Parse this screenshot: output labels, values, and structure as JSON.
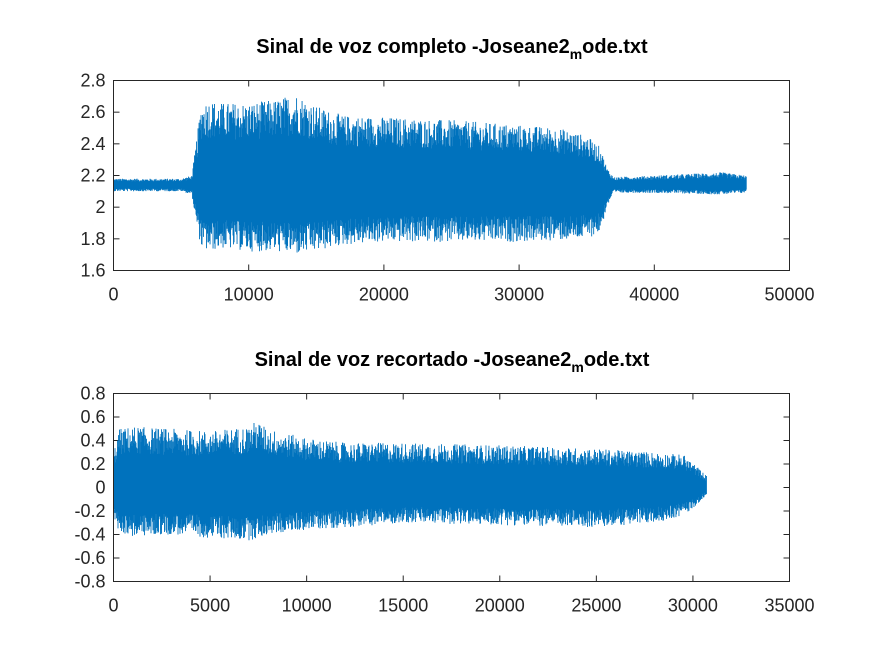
{
  "chart_data": [
    {
      "type": "line",
      "title": "Sinal de voz completo -Joseane2",
      "title_subscript": "m",
      "title_suffix": "ode.txt",
      "xlabel": "",
      "ylabel": "",
      "xlim": [
        0,
        50000
      ],
      "ylim": [
        1.6,
        2.8
      ],
      "x_ticks": [
        0,
        10000,
        20000,
        30000,
        40000,
        50000
      ],
      "x_tick_labels": [
        "0",
        "10000",
        "20000",
        "30000",
        "40000",
        "50000"
      ],
      "y_ticks": [
        1.6,
        1.8,
        2.0,
        2.2,
        2.4,
        2.6,
        2.8
      ],
      "y_tick_labels": [
        "1.6",
        "1.8",
        "2",
        "2.2",
        "2.4",
        "2.6",
        "2.8"
      ],
      "grid": false,
      "series_color": "#0072BD",
      "series": [
        {
          "baseline": 2.14,
          "sample_count": 46800,
          "envelope": {
            "x": [
              0,
              5000,
              5800,
              6100,
              6500,
              7000,
              8000,
              10000,
              12000,
              13500,
              15000,
              17000,
              20000,
              25000,
              30000,
              33000,
              35000,
              36000,
              36500,
              37000,
              40000,
              45000,
              46800
            ],
            "upper": [
              2.18,
              2.18,
              2.2,
              2.4,
              2.66,
              2.68,
              2.66,
              2.66,
              2.68,
              2.72,
              2.64,
              2.58,
              2.57,
              2.55,
              2.52,
              2.5,
              2.45,
              2.38,
              2.25,
              2.19,
              2.2,
              2.22,
              2.2
            ],
            "lower": [
              2.1,
              2.1,
              2.08,
              1.9,
              1.74,
              1.72,
              1.74,
              1.72,
              1.72,
              1.7,
              1.72,
              1.76,
              1.78,
              1.78,
              1.78,
              1.79,
              1.8,
              1.84,
              2.0,
              2.09,
              2.09,
              2.08,
              2.09
            ]
          }
        }
      ]
    },
    {
      "type": "line",
      "title": "Sinal de voz recortado -Joseane2",
      "title_subscript": "m",
      "title_suffix": "ode.txt",
      "xlabel": "",
      "ylabel": "",
      "xlim": [
        0,
        35000
      ],
      "ylim": [
        -0.8,
        0.8
      ],
      "x_ticks": [
        0,
        5000,
        10000,
        15000,
        20000,
        25000,
        30000,
        35000
      ],
      "x_tick_labels": [
        "0",
        "5000",
        "10000",
        "15000",
        "20000",
        "25000",
        "30000",
        "35000"
      ],
      "y_ticks": [
        -0.8,
        -0.6,
        -0.4,
        -0.2,
        0,
        0.2,
        0.4,
        0.6,
        0.8
      ],
      "y_tick_labels": [
        "-0.8",
        "-0.6",
        "-0.4",
        "-0.2",
        "0",
        "0.2",
        "0.4",
        "0.6",
        "0.8"
      ],
      "grid": false,
      "series_color": "#0072BD",
      "series": [
        {
          "baseline": 0,
          "sample_count": 30700,
          "envelope": {
            "x": [
              0,
              300,
              1000,
              3000,
              5000,
              7000,
              7400,
              8000,
              10000,
              12000,
              15000,
              20000,
              25000,
              28000,
              29500,
              30200,
              30700
            ],
            "upper": [
              0.3,
              0.5,
              0.52,
              0.5,
              0.48,
              0.52,
              0.57,
              0.5,
              0.42,
              0.38,
              0.38,
              0.36,
              0.33,
              0.3,
              0.28,
              0.18,
              0.1
            ],
            "lower": [
              -0.25,
              -0.38,
              -0.42,
              -0.4,
              -0.43,
              -0.45,
              -0.44,
              -0.4,
              -0.36,
              -0.34,
              -0.3,
              -0.32,
              -0.34,
              -0.3,
              -0.24,
              -0.15,
              -0.06
            ]
          }
        }
      ]
    }
  ]
}
